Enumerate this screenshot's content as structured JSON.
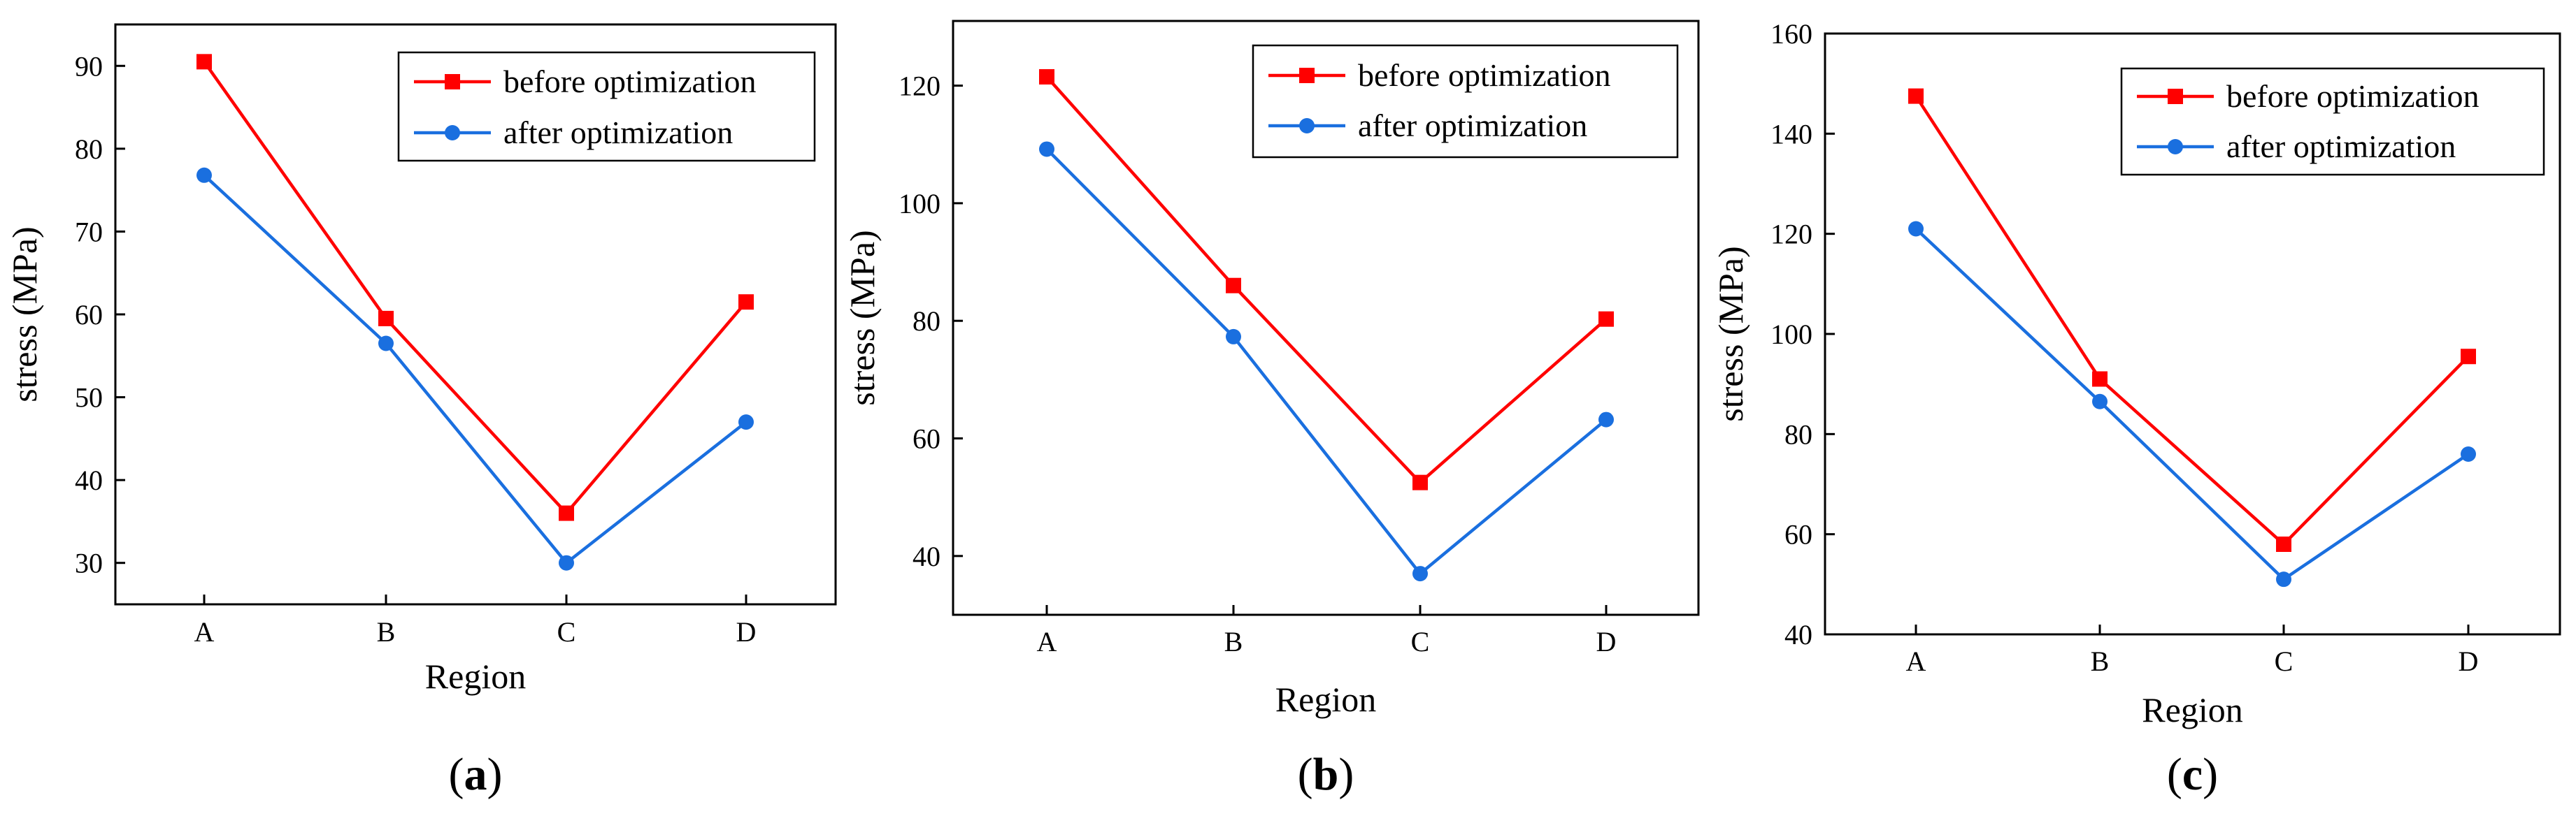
{
  "chart_data": [
    {
      "type": "line",
      "panel_label": "a",
      "categories": [
        "A",
        "B",
        "C",
        "D"
      ],
      "series": [
        {
          "name": "before optimization",
          "color": "#ff0000",
          "marker": "square",
          "values": [
            90.5,
            59.5,
            36,
            61.5
          ]
        },
        {
          "name": "after optimization",
          "color": "#1a6fdf",
          "marker": "circle",
          "values": [
            76.8,
            56.5,
            30,
            47
          ]
        }
      ],
      "xlabel": "Region",
      "ylabel": "stress (MPa)",
      "ylim": [
        25,
        95
      ],
      "yticks": [
        30,
        40,
        50,
        60,
        70,
        80,
        90
      ],
      "legend": "top-right"
    },
    {
      "type": "line",
      "panel_label": "b",
      "categories": [
        "A",
        "B",
        "C",
        "D"
      ],
      "series": [
        {
          "name": "before optimization",
          "color": "#ff0000",
          "marker": "square",
          "values": [
            121.5,
            86,
            52.5,
            80.3
          ]
        },
        {
          "name": "after optimization",
          "color": "#1a6fdf",
          "marker": "circle",
          "values": [
            109.2,
            77.3,
            37,
            63.2
          ]
        }
      ],
      "xlabel": "Region",
      "ylabel": "stress (MPa)",
      "ylim": [
        30,
        131
      ],
      "yticks": [
        40,
        60,
        80,
        100,
        120
      ],
      "legend": "top-right"
    },
    {
      "type": "line",
      "panel_label": "c",
      "categories": [
        "A",
        "B",
        "C",
        "D"
      ],
      "series": [
        {
          "name": "before optimization",
          "color": "#ff0000",
          "marker": "square",
          "values": [
            147.5,
            91,
            58,
            95.5
          ]
        },
        {
          "name": "after optimization",
          "color": "#1a6fdf",
          "marker": "circle",
          "values": [
            121,
            86.5,
            51,
            76
          ]
        }
      ],
      "xlabel": "Region",
      "ylabel": "stress (MPa)",
      "ylim": [
        40,
        160
      ],
      "yticks": [
        40,
        60,
        80,
        100,
        120,
        140,
        160
      ],
      "legend": "top-right"
    }
  ]
}
